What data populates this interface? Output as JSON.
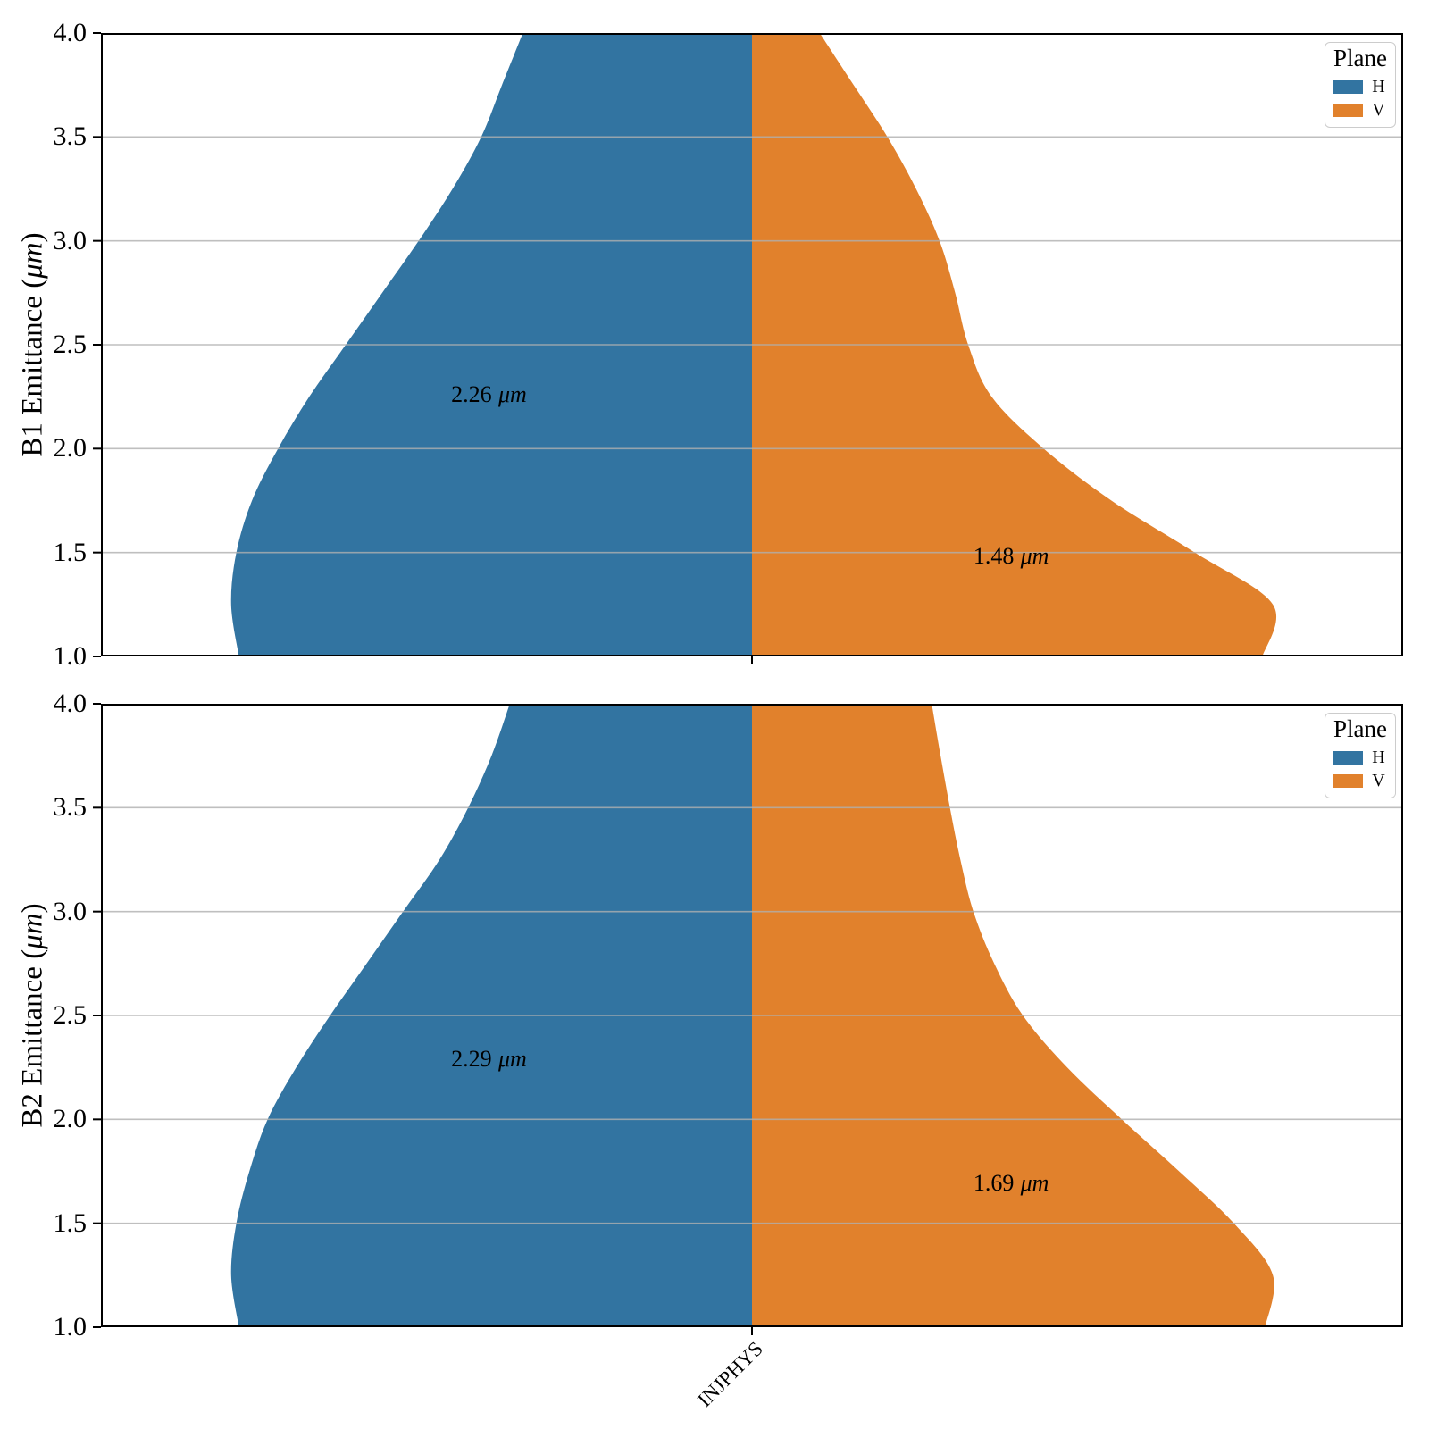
{
  "figure": {
    "background": "#ffffff"
  },
  "legend": {
    "title": "Plane",
    "entries": [
      {
        "label": "H",
        "color": "#3274a1"
      },
      {
        "label": "V",
        "color": "#e1812c"
      }
    ]
  },
  "chart_data": [
    {
      "type": "violin",
      "split": true,
      "category": "INJPHYS",
      "ylabel": {
        "prefix": "B1 Emittance (",
        "unit": "μm",
        "suffix": ")"
      },
      "ylim": [
        1.0,
        4.0
      ],
      "y_ticks": [
        "4.0",
        "3.5",
        "3.0",
        "2.5",
        "2.0",
        "1.5",
        "1.0"
      ],
      "grid": true,
      "legend_position": "upper right",
      "series": [
        {
          "name": "H",
          "color": "#3274a1",
          "mean": 2.26,
          "mean_label": {
            "value": "2.26",
            "unit": "μm"
          },
          "profile_e": [
            4.0,
            3.75,
            3.5,
            3.25,
            3.0,
            2.75,
            2.5,
            2.25,
            2.0,
            1.75,
            1.5,
            1.25,
            1.0
          ],
          "profile_w": [
            0.44,
            0.48,
            0.52,
            0.575,
            0.64,
            0.71,
            0.78,
            0.85,
            0.91,
            0.96,
            0.99,
            1.0,
            0.985
          ]
        },
        {
          "name": "V",
          "color": "#e1812c",
          "mean": 1.48,
          "mean_label": {
            "value": "1.48",
            "unit": "μm"
          },
          "profile_e": [
            4.0,
            3.75,
            3.5,
            3.25,
            3.0,
            2.75,
            2.5,
            2.25,
            2.0,
            1.75,
            1.5,
            1.25,
            1.0
          ],
          "profile_w": [
            0.13,
            0.195,
            0.26,
            0.315,
            0.36,
            0.39,
            0.415,
            0.46,
            0.56,
            0.69,
            0.85,
            1.0,
            0.98
          ]
        }
      ]
    },
    {
      "type": "violin",
      "split": true,
      "category": "INJPHYS",
      "ylabel": {
        "prefix": "B2 Emittance (",
        "unit": "μm",
        "suffix": ")"
      },
      "ylim": [
        1.0,
        4.0
      ],
      "y_ticks": [
        "4.0",
        "3.5",
        "3.0",
        "2.5",
        "2.0",
        "1.5",
        "1.0"
      ],
      "grid": true,
      "legend_position": "upper right",
      "series": [
        {
          "name": "H",
          "color": "#3274a1",
          "mean": 2.29,
          "mean_label": {
            "value": "2.29",
            "unit": "μm"
          },
          "profile_e": [
            4.0,
            3.75,
            3.5,
            3.25,
            3.0,
            2.75,
            2.5,
            2.25,
            2.0,
            1.75,
            1.5,
            1.25,
            1.0
          ],
          "profile_w": [
            0.465,
            0.5,
            0.545,
            0.6,
            0.67,
            0.74,
            0.81,
            0.875,
            0.93,
            0.965,
            0.99,
            1.0,
            0.985
          ]
        },
        {
          "name": "V",
          "color": "#e1812c",
          "mean": 1.69,
          "mean_label": {
            "value": "1.69",
            "unit": "μm"
          },
          "profile_e": [
            4.0,
            3.75,
            3.5,
            3.25,
            3.0,
            2.75,
            2.5,
            2.25,
            2.0,
            1.75,
            1.5,
            1.25,
            1.0
          ],
          "profile_w": [
            0.345,
            0.362,
            0.38,
            0.4,
            0.425,
            0.465,
            0.52,
            0.605,
            0.71,
            0.82,
            0.925,
            1.0,
            0.985
          ]
        }
      ]
    }
  ]
}
